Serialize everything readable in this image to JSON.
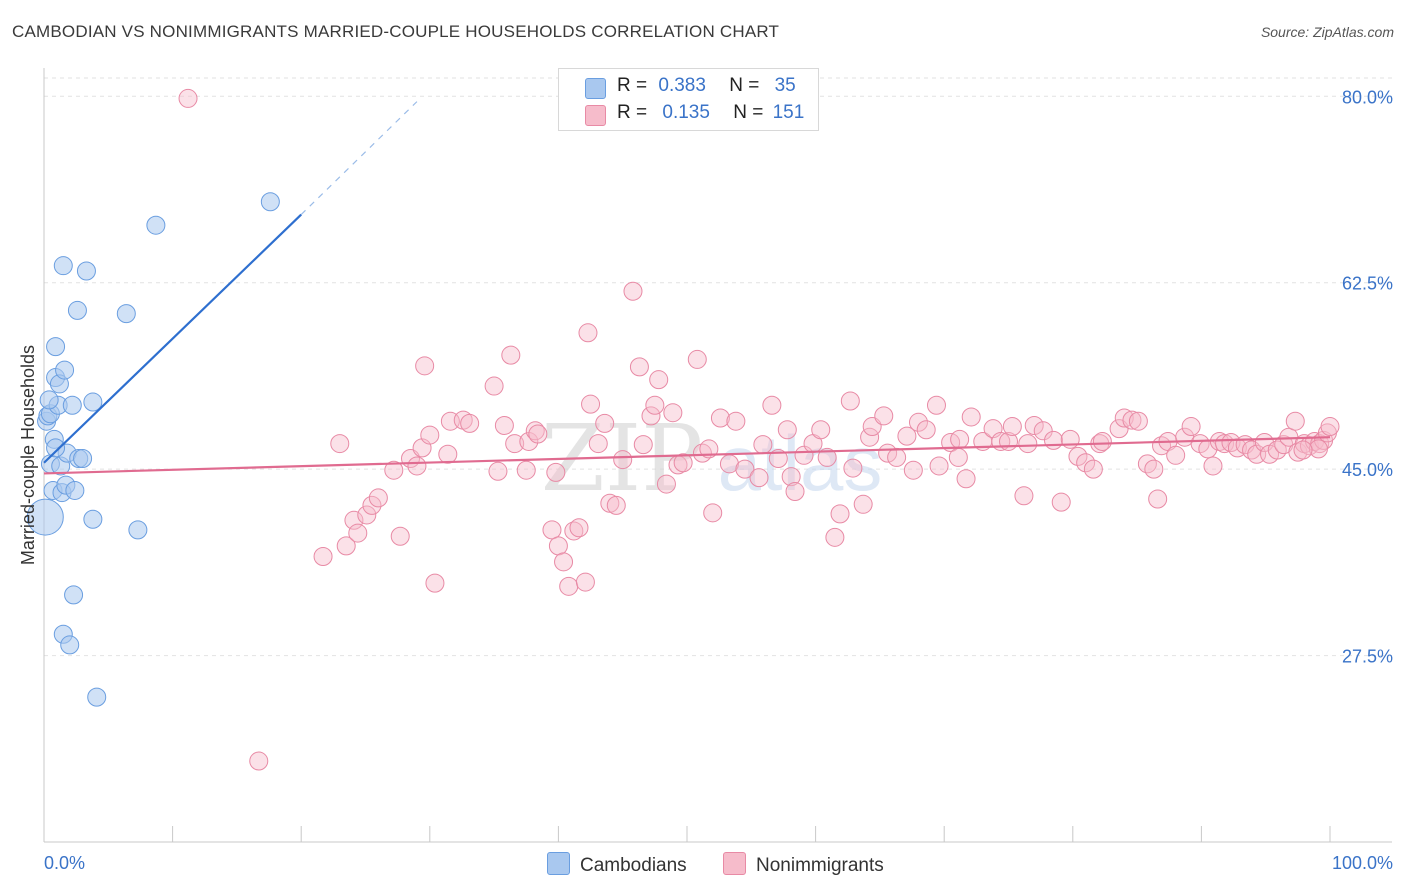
{
  "title": "CAMBODIAN VS NONIMMIGRANTS MARRIED-COUPLE HOUSEHOLDS CORRELATION CHART",
  "source": "Source: ZipAtlas.com",
  "watermark": {
    "zip": "ZIP",
    "atlas": "atlas"
  },
  "legend": {
    "r_label": "R =",
    "n_label": "N =",
    "rows": [
      {
        "r": "0.383",
        "n": "35"
      },
      {
        "r": "0.135",
        "n": "151"
      }
    ]
  },
  "colors": {
    "cambodian_fill": "#a9c8ef",
    "cambodian_stroke": "#6a9ee0",
    "cambodian_line": "#2e6fcf",
    "nonimm_fill": "#f6bccb",
    "nonimm_stroke": "#e88aa5",
    "nonimm_line": "#e06b90",
    "axis_label": "#3a73c8",
    "grid": "#e2e2e2"
  },
  "chart_data": {
    "type": "scatter",
    "title": "CAMBODIAN VS NONIMMIGRANTS MARRIED-COUPLE HOUSEHOLDS CORRELATION CHART",
    "xlabel": "",
    "ylabel": "Married-couple Households",
    "xlim": [
      0,
      100
    ],
    "ylim": [
      10,
      82
    ],
    "x_tick_labels": [
      "0.0%",
      "100.0%"
    ],
    "y_ticks": [
      27.5,
      45.0,
      62.5,
      80.0
    ],
    "y_tick_labels": [
      "27.5%",
      "45.0%",
      "62.5%",
      "80.0%"
    ],
    "grid": true,
    "series": [
      {
        "name": "Cambodians",
        "r": 0.383,
        "n": 35,
        "trend": {
          "x0": 0,
          "y0": 45.6,
          "x1": 20.0,
          "y1": 68.9,
          "dash_to_x": 29.0,
          "dash_to_y": 79.5
        },
        "points": [
          [
            0.1,
            40.5,
            18
          ],
          [
            0.2,
            49.5,
            9
          ],
          [
            0.3,
            50.0,
            9
          ],
          [
            0.5,
            50.2,
            9
          ],
          [
            0.5,
            45.5,
            9
          ],
          [
            0.7,
            43.0,
            9
          ],
          [
            0.8,
            47.8,
            9
          ],
          [
            0.9,
            56.5,
            9
          ],
          [
            0.9,
            53.6,
            9
          ],
          [
            1.2,
            53.0,
            9
          ],
          [
            1.1,
            51.0,
            9
          ],
          [
            1.3,
            45.3,
            9
          ],
          [
            1.4,
            42.8,
            9
          ],
          [
            1.5,
            64.1,
            9
          ],
          [
            1.5,
            29.5,
            9
          ],
          [
            1.6,
            54.3,
            9
          ],
          [
            1.7,
            43.5,
            9
          ],
          [
            1.8,
            46.5,
            9
          ],
          [
            2.0,
            28.5,
            9
          ],
          [
            2.2,
            51.0,
            9
          ],
          [
            2.3,
            33.2,
            9
          ],
          [
            2.4,
            43.0,
            9
          ],
          [
            2.6,
            59.9,
            9
          ],
          [
            2.7,
            46.0,
            9
          ],
          [
            3.0,
            46.0,
            9
          ],
          [
            3.3,
            63.6,
            9
          ],
          [
            3.8,
            51.3,
            9
          ],
          [
            3.8,
            40.3,
            9
          ],
          [
            4.1,
            23.6,
            9
          ],
          [
            6.4,
            59.6,
            9
          ],
          [
            7.3,
            39.3,
            9
          ],
          [
            8.7,
            67.9,
            9
          ],
          [
            17.6,
            70.1,
            9
          ],
          [
            0.4,
            51.5,
            9
          ],
          [
            0.9,
            47.0,
            9
          ]
        ]
      },
      {
        "name": "Nonimmigrants",
        "r": 0.135,
        "n": 151,
        "trend": {
          "x0": 0,
          "y0": 44.6,
          "x1": 100,
          "y1": 48.0
        },
        "points": [
          [
            11.2,
            79.8,
            9
          ],
          [
            16.7,
            17.6,
            9
          ],
          [
            21.7,
            36.8,
            9
          ],
          [
            23.0,
            47.4,
            9
          ],
          [
            23.5,
            37.8,
            9
          ],
          [
            24.1,
            40.2,
            9
          ],
          [
            24.4,
            39.0,
            9
          ],
          [
            25.1,
            40.7,
            9
          ],
          [
            25.5,
            41.6,
            9
          ],
          [
            26.0,
            42.3,
            9
          ],
          [
            27.2,
            44.9,
            9
          ],
          [
            27.7,
            38.7,
            9
          ],
          [
            28.5,
            46.0,
            9
          ],
          [
            29.0,
            45.3,
            9
          ],
          [
            29.4,
            47.0,
            9
          ],
          [
            29.6,
            54.7,
            9
          ],
          [
            30.4,
            34.3,
            9
          ],
          [
            31.4,
            46.4,
            9
          ],
          [
            31.6,
            49.5,
            9
          ],
          [
            32.6,
            49.6,
            9
          ],
          [
            33.1,
            49.3,
            9
          ],
          [
            35.0,
            52.8,
            9
          ],
          [
            35.3,
            44.8,
            9
          ],
          [
            35.8,
            49.1,
            9
          ],
          [
            36.3,
            55.7,
            9
          ],
          [
            36.6,
            47.4,
            9
          ],
          [
            37.5,
            44.9,
            9
          ],
          [
            37.7,
            47.6,
            9
          ],
          [
            38.2,
            48.6,
            9
          ],
          [
            38.4,
            48.3,
            9
          ],
          [
            39.5,
            39.3,
            9
          ],
          [
            39.8,
            44.7,
            9
          ],
          [
            40.0,
            37.8,
            9
          ],
          [
            40.4,
            36.3,
            9
          ],
          [
            40.8,
            34.0,
            9
          ],
          [
            41.2,
            39.2,
            9
          ],
          [
            41.6,
            39.5,
            9
          ],
          [
            42.1,
            34.4,
            9
          ],
          [
            42.3,
            57.8,
            9
          ],
          [
            42.5,
            51.1,
            9
          ],
          [
            43.1,
            47.4,
            9
          ],
          [
            43.6,
            49.3,
            9
          ],
          [
            44.0,
            41.8,
            9
          ],
          [
            44.5,
            41.6,
            9
          ],
          [
            45.0,
            45.9,
            9
          ],
          [
            45.8,
            61.7,
            9
          ],
          [
            46.3,
            54.6,
            9
          ],
          [
            46.6,
            47.3,
            9
          ],
          [
            47.2,
            50.0,
            9
          ],
          [
            47.5,
            51.0,
            9
          ],
          [
            47.8,
            53.4,
            9
          ],
          [
            48.4,
            43.6,
            9
          ],
          [
            48.9,
            50.3,
            9
          ],
          [
            49.3,
            45.4,
            9
          ],
          [
            49.7,
            45.6,
            9
          ],
          [
            50.8,
            55.3,
            9
          ],
          [
            51.2,
            46.5,
            9
          ],
          [
            51.7,
            46.9,
            9
          ],
          [
            52.0,
            40.9,
            9
          ],
          [
            52.6,
            49.8,
            9
          ],
          [
            53.3,
            45.5,
            9
          ],
          [
            53.8,
            49.5,
            9
          ],
          [
            54.5,
            45.0,
            9
          ],
          [
            55.6,
            44.2,
            9
          ],
          [
            55.9,
            47.3,
            9
          ],
          [
            56.6,
            51.0,
            9
          ],
          [
            57.1,
            46.0,
            9
          ],
          [
            57.8,
            48.7,
            9
          ],
          [
            58.1,
            44.3,
            9
          ],
          [
            58.4,
            42.9,
            9
          ],
          [
            59.1,
            46.3,
            9
          ],
          [
            59.8,
            47.4,
            9
          ],
          [
            60.4,
            48.7,
            9
          ],
          [
            60.9,
            46.1,
            9
          ],
          [
            61.5,
            38.6,
            9
          ],
          [
            61.9,
            40.8,
            9
          ],
          [
            62.7,
            51.4,
            9
          ],
          [
            62.9,
            45.1,
            9
          ],
          [
            63.7,
            41.7,
            9
          ],
          [
            64.2,
            48.0,
            9
          ],
          [
            64.4,
            49.0,
            9
          ],
          [
            65.3,
            50.0,
            9
          ],
          [
            65.6,
            46.5,
            9
          ],
          [
            66.3,
            46.1,
            9
          ],
          [
            67.1,
            48.1,
            9
          ],
          [
            67.6,
            44.9,
            9
          ],
          [
            68.0,
            49.4,
            9
          ],
          [
            68.6,
            48.7,
            9
          ],
          [
            69.4,
            51.0,
            9
          ],
          [
            69.6,
            45.3,
            9
          ],
          [
            70.5,
            47.5,
            9
          ],
          [
            71.1,
            46.1,
            9
          ],
          [
            71.2,
            47.8,
            9
          ],
          [
            71.7,
            44.1,
            9
          ],
          [
            72.1,
            49.9,
            9
          ],
          [
            73.0,
            47.6,
            9
          ],
          [
            73.8,
            48.8,
            9
          ],
          [
            74.4,
            47.6,
            9
          ],
          [
            75.0,
            47.6,
            9
          ],
          [
            75.3,
            49.0,
            9
          ],
          [
            76.2,
            42.5,
            9
          ],
          [
            76.5,
            47.4,
            9
          ],
          [
            77.0,
            49.1,
            9
          ],
          [
            77.7,
            48.6,
            9
          ],
          [
            78.5,
            47.7,
            9
          ],
          [
            79.1,
            41.9,
            9
          ],
          [
            79.8,
            47.8,
            9
          ],
          [
            80.4,
            46.2,
            9
          ],
          [
            81.0,
            45.6,
            9
          ],
          [
            81.6,
            45.0,
            9
          ],
          [
            82.1,
            47.4,
            9
          ],
          [
            82.3,
            47.6,
            9
          ],
          [
            83.6,
            48.8,
            9
          ],
          [
            84.0,
            49.8,
            9
          ],
          [
            84.6,
            49.6,
            9
          ],
          [
            85.1,
            49.5,
            9
          ],
          [
            85.8,
            45.5,
            9
          ],
          [
            86.3,
            45.0,
            9
          ],
          [
            86.6,
            42.2,
            9
          ],
          [
            86.9,
            47.2,
            9
          ],
          [
            87.4,
            47.6,
            9
          ],
          [
            88.0,
            46.3,
            9
          ],
          [
            88.7,
            48.0,
            9
          ],
          [
            89.2,
            49.0,
            9
          ],
          [
            89.9,
            47.4,
            9
          ],
          [
            90.5,
            46.9,
            9
          ],
          [
            90.9,
            45.3,
            9
          ],
          [
            91.4,
            47.6,
            9
          ],
          [
            91.8,
            47.4,
            9
          ],
          [
            92.3,
            47.5,
            9
          ],
          [
            92.8,
            47.0,
            9
          ],
          [
            93.4,
            47.3,
            9
          ],
          [
            93.9,
            46.8,
            9
          ],
          [
            94.3,
            46.4,
            9
          ],
          [
            94.9,
            47.5,
            9
          ],
          [
            95.3,
            46.4,
            9
          ],
          [
            95.9,
            46.8,
            9
          ],
          [
            96.4,
            47.3,
            9
          ],
          [
            96.8,
            48.0,
            9
          ],
          [
            97.3,
            49.5,
            9
          ],
          [
            97.5,
            46.6,
            9
          ],
          [
            98.0,
            47.4,
            9
          ],
          [
            98.4,
            47.2,
            9
          ],
          [
            98.8,
            47.6,
            9
          ],
          [
            99.2,
            47.4,
            9
          ],
          [
            99.5,
            47.7,
            9
          ],
          [
            99.8,
            48.4,
            9
          ],
          [
            100.0,
            49.0,
            9
          ],
          [
            99.1,
            46.9,
            9
          ],
          [
            97.9,
            46.8,
            9
          ],
          [
            30.0,
            48.2,
            9
          ]
        ]
      }
    ]
  },
  "bottom_legend": [
    {
      "label": "Cambodians"
    },
    {
      "label": "Nonimmigrants"
    }
  ]
}
